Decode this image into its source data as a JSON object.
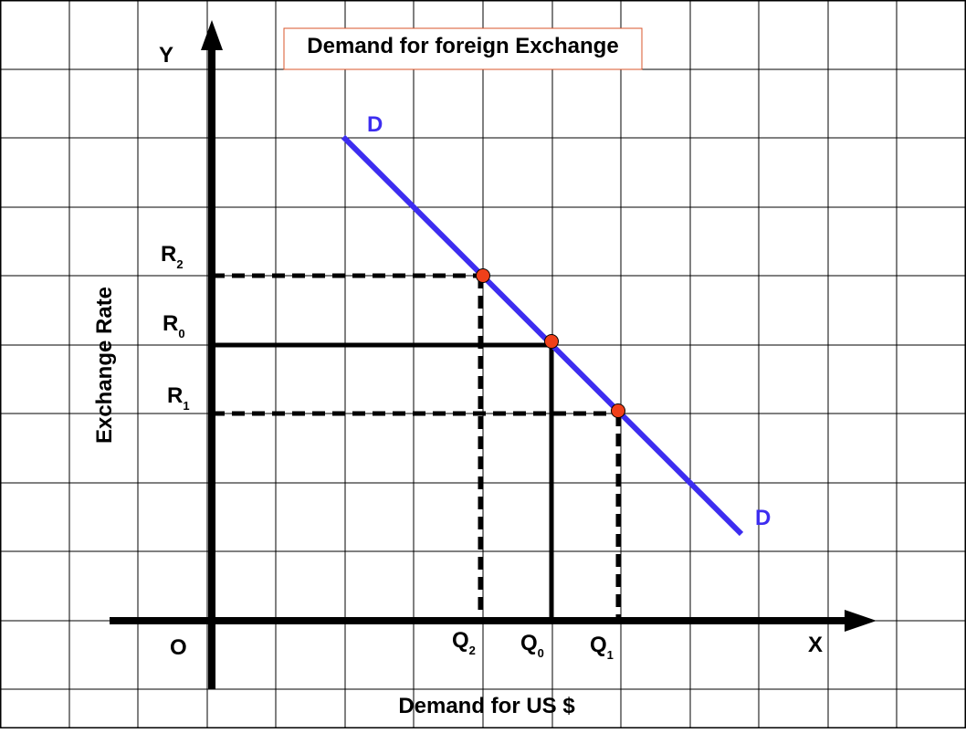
{
  "title": "Demand for foreign Exchange",
  "axes": {
    "y_label": "Y",
    "x_label": "X",
    "origin": "O",
    "y_title": "Exchange Rate",
    "x_title": "Demand for US $"
  },
  "curve": {
    "label_top": "D",
    "label_bottom": "D"
  },
  "rates": [
    {
      "base": "R",
      "sub": "2"
    },
    {
      "base": "R",
      "sub": "0"
    },
    {
      "base": "R",
      "sub": "1"
    }
  ],
  "quantities": [
    {
      "base": "Q",
      "sub": "2"
    },
    {
      "base": "Q",
      "sub": "0"
    },
    {
      "base": "Q",
      "sub": "1"
    }
  ]
}
